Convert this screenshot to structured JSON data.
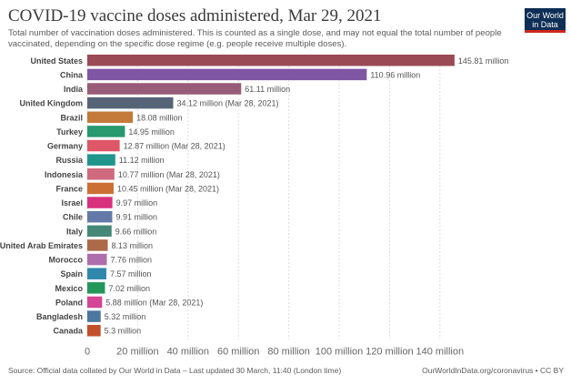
{
  "header": {
    "title": "COVID-19 vaccine doses administered, Mar 29, 2021",
    "subtitle": "Total number of vaccination doses administered. This is counted as a single dose, and may not equal the total number of people vaccinated, depending on the specific dose regime (e.g. people receive multiple doses).",
    "logo": "Our World in Data"
  },
  "footer": {
    "source": "Source: Official data collated by Our World in Data – Last updated 30 March, 11:40 (London time)",
    "credit": "OurWorldInData.org/coronavirus • CC BY"
  },
  "chart_data": {
    "type": "bar",
    "orientation": "horizontal",
    "unit": "million",
    "grid": true,
    "xlim": [
      0,
      145.81
    ],
    "xticks": [
      0,
      20,
      40,
      60,
      80,
      100,
      120,
      140
    ],
    "xtick_labels": [
      "0",
      "20 million",
      "40 million",
      "60 million",
      "80 million",
      "100 million",
      "120 million",
      "140 million"
    ],
    "categories": [
      "United States",
      "China",
      "India",
      "United Kingdom",
      "Brazil",
      "Turkey",
      "Germany",
      "Russia",
      "Indonesia",
      "France",
      "Israel",
      "Chile",
      "Italy",
      "United Arab Emirates",
      "Morocco",
      "Spain",
      "Mexico",
      "Poland",
      "Bangladesh",
      "Canada"
    ],
    "values": [
      145.81,
      110.96,
      61.11,
      34.12,
      18.08,
      14.95,
      12.87,
      11.12,
      10.77,
      10.45,
      9.97,
      9.91,
      9.66,
      8.13,
      7.76,
      7.57,
      7.02,
      5.88,
      5.32,
      5.3
    ],
    "labels": [
      "145.81 million",
      "110.96 million",
      "61.11 million",
      "34.12 million (Mar 28, 2021)",
      "18.08 million",
      "14.95 million",
      "12.87 million (Mar 28, 2021)",
      "11.12 million",
      "10.77 million (Mar 28, 2021)",
      "10.45 million (Mar 28, 2021)",
      "9.97 million",
      "9.91 million",
      "9.66 million",
      "8.13 million",
      "7.76 million",
      "7.57 million",
      "7.02 million",
      "5.88 million (Mar 28, 2021)",
      "5.32 million",
      "5.3 million"
    ],
    "colors": [
      "#9a4a55",
      "#7f56a3",
      "#985b78",
      "#566478",
      "#c47a3a",
      "#28986f",
      "#de5768",
      "#1f958c",
      "#cf6a7c",
      "#cc6f34",
      "#d8307c",
      "#6479a8",
      "#468878",
      "#ad6a48",
      "#ae6dab",
      "#2f88ac",
      "#23975a",
      "#d64495",
      "#4b77a0",
      "#c2502b"
    ]
  }
}
